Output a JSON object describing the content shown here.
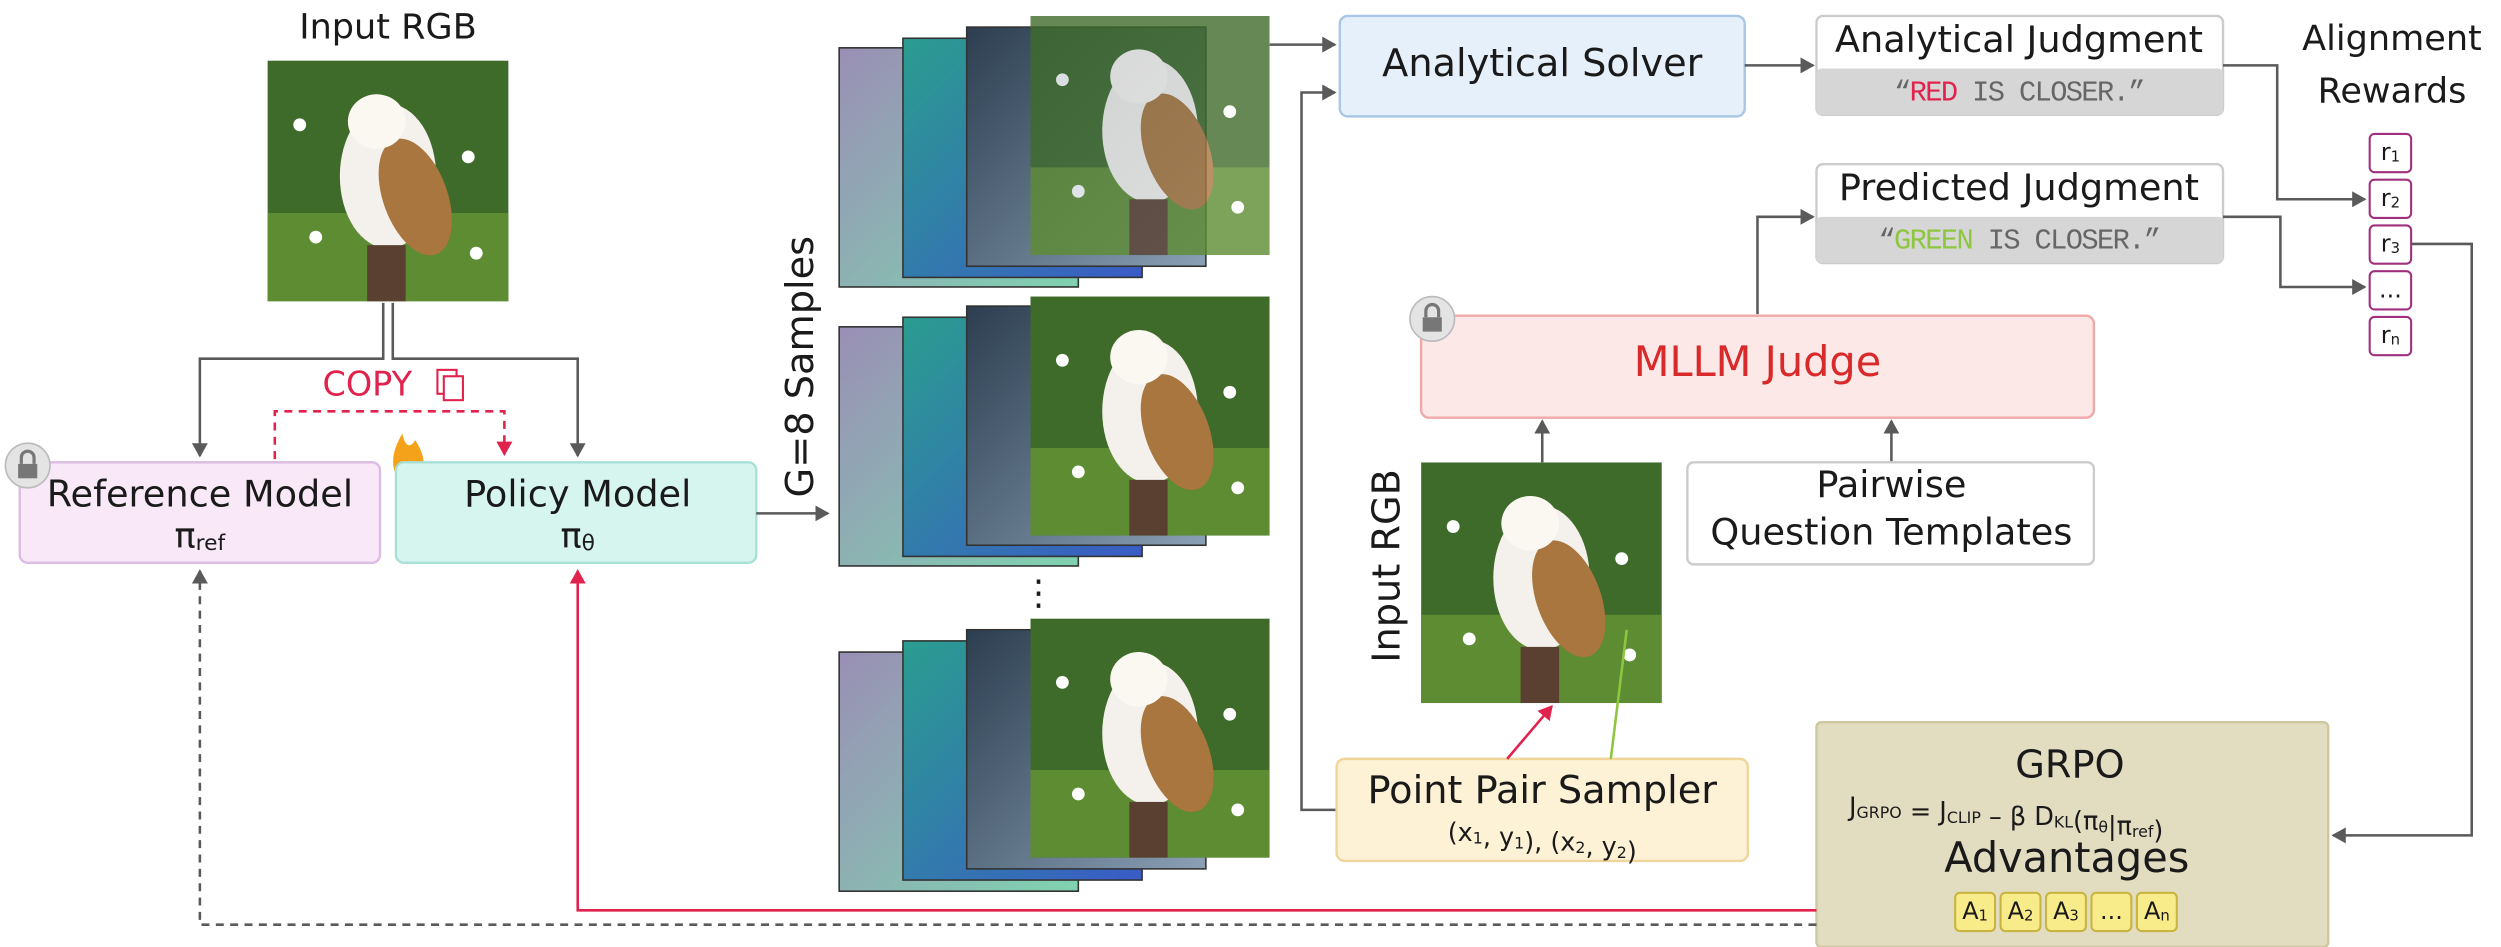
{
  "input_rgb_top": "Input RGB",
  "copy_label": "COPY",
  "reference_model": {
    "name": "Reference Model",
    "symbol": {
      "text": "π",
      "sub": "ref"
    }
  },
  "policy_model": {
    "name": "Policy Model",
    "symbol": {
      "text": "π",
      "sub": "θ"
    }
  },
  "samples_label": "G=8 Samples",
  "analytical_solver": "Analytical Solver",
  "analytical_judgment": {
    "title": "Analytical Judgment",
    "quote": [
      "“",
      "RED",
      " IS CLOSER.”"
    ]
  },
  "predicted_judgment": {
    "title": "Predicted Judgment",
    "quote": [
      "“",
      "GREEN",
      " IS CLOSER.”"
    ]
  },
  "alignment_rewards": {
    "title": [
      "Alignment",
      "Rewards"
    ],
    "rewards": [
      {
        "text": "r",
        "sub": "1"
      },
      {
        "text": "r",
        "sub": "2"
      },
      {
        "text": "r",
        "sub": "3"
      },
      {
        "text": "..."
      },
      {
        "text": "r",
        "sub": "n"
      }
    ]
  },
  "mllm_judge": "MLLM Judge",
  "pairwise_templates": [
    "Pairwise",
    "Question Templates"
  ],
  "input_rgb_side": "Input RGB",
  "point_pair_sampler": {
    "title": "Point Pair Sampler",
    "coords": [
      {
        "text": "(x",
        "sub": "1"
      },
      {
        "text": ", y",
        "sub": "1"
      },
      {
        "text": "), (x",
        "sub": "2"
      },
      {
        "text": ", y",
        "sub": "2"
      },
      {
        "text": ")"
      }
    ]
  },
  "grpo": {
    "title": "GRPO",
    "formula": [
      {
        "text": "J",
        "sub": "GRPO"
      },
      {
        "text": " = J",
        "sub": "CLIP"
      },
      {
        "text": " – β D",
        "sub": "KL"
      },
      {
        "text": "(π",
        "sub": "θ"
      },
      {
        "text": "|π",
        "sub": "ref"
      },
      {
        "text": ")"
      }
    ],
    "advantages_title": "Advantages",
    "advantages": [
      {
        "text": "A",
        "sub": "1"
      },
      {
        "text": "A",
        "sub": "2"
      },
      {
        "text": "A",
        "sub": "3"
      },
      {
        "text": "..."
      },
      {
        "text": "A",
        "sub": "n"
      }
    ]
  }
}
